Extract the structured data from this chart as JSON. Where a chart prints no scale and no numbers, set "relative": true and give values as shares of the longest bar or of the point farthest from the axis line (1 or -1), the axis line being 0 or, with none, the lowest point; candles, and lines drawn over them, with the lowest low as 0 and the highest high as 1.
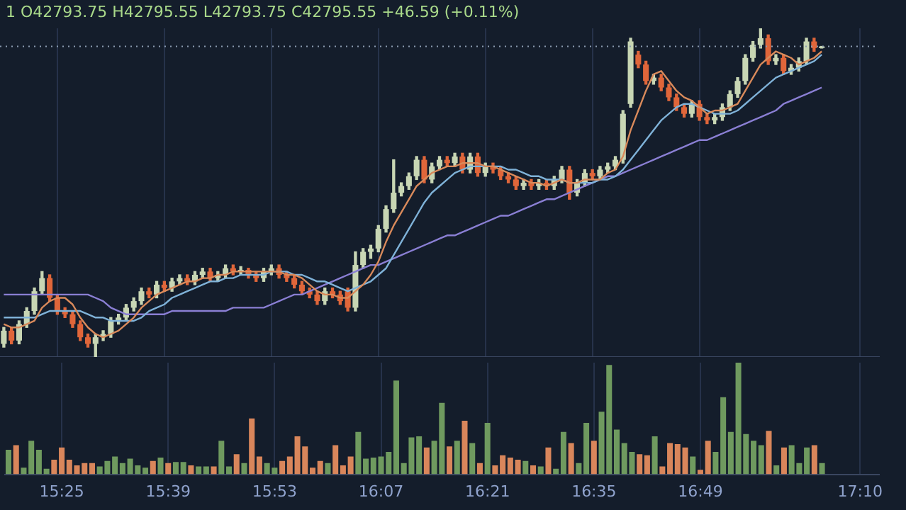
{
  "chart_data": [
    {
      "type": "candlestick",
      "relative": true,
      "tick_labels": false,
      "grid": "x",
      "legend": false,
      "annotations": [
        "1 O42793.75 H42795.55 L42793.75 C42795.55 +46.59 (+0.11%)"
      ],
      "categories": [
        null,
        null,
        null,
        null,
        null,
        null,
        null,
        null,
        null,
        null,
        null,
        null,
        null,
        null,
        null,
        null,
        null,
        null,
        null,
        null,
        null,
        null,
        null,
        null,
        null,
        null,
        null,
        null,
        null,
        null,
        null,
        null,
        null,
        null,
        null,
        null,
        null,
        null,
        null,
        null,
        null,
        null,
        null,
        null,
        null,
        null,
        null,
        null,
        null,
        null,
        null,
        null,
        null,
        null,
        null,
        null,
        null,
        null,
        null,
        null,
        null,
        null,
        null,
        null,
        null,
        null,
        null,
        null,
        null,
        null,
        null,
        null,
        null,
        null,
        null,
        null,
        null,
        null,
        null,
        null,
        null,
        null,
        null,
        null,
        null,
        null,
        null,
        null,
        null,
        null,
        null,
        null,
        null,
        null,
        null,
        null,
        null,
        null,
        null,
        null,
        null,
        null,
        null,
        null,
        null,
        null,
        null,
        null,
        null,
        null,
        null,
        null,
        null,
        null,
        null
      ],
      "ohlc": [
        [
          0.04,
          0.09,
          0.03,
          0.08
        ],
        [
          0.08,
          0.09,
          0.04,
          0.05
        ],
        [
          0.05,
          0.11,
          0.04,
          0.1
        ],
        [
          0.1,
          0.15,
          0.09,
          0.14
        ],
        [
          0.14,
          0.21,
          0.13,
          0.2
        ],
        [
          0.2,
          0.26,
          0.19,
          0.24
        ],
        [
          0.24,
          0.25,
          0.17,
          0.18
        ],
        [
          0.18,
          0.19,
          0.13,
          0.14
        ],
        [
          0.14,
          0.15,
          0.12,
          0.13
        ],
        [
          0.13,
          0.14,
          0.09,
          0.1
        ],
        [
          0.1,
          0.11,
          0.05,
          0.06
        ],
        [
          0.06,
          0.07,
          0.03,
          0.04
        ],
        [
          0.04,
          0.07,
          0,
          0.06
        ],
        [
          0.06,
          0.08,
          0.05,
          0.07
        ],
        [
          0.07,
          0.12,
          0.06,
          0.11
        ],
        [
          0.11,
          0.13,
          0.1,
          0.12
        ],
        [
          0.12,
          0.16,
          0.11,
          0.15
        ],
        [
          0.15,
          0.18,
          0.14,
          0.17
        ],
        [
          0.17,
          0.21,
          0.16,
          0.2
        ],
        [
          0.2,
          0.21,
          0.18,
          0.19
        ],
        [
          0.19,
          0.23,
          0.18,
          0.22
        ],
        [
          0.22,
          0.23,
          0.2,
          0.21
        ],
        [
          0.21,
          0.24,
          0.2,
          0.23
        ],
        [
          0.23,
          0.25,
          0.22,
          0.24
        ],
        [
          0.24,
          0.25,
          0.22,
          0.23
        ],
        [
          0.23,
          0.26,
          0.22,
          0.25
        ],
        [
          0.25,
          0.27,
          0.24,
          0.26
        ],
        [
          0.26,
          0.27,
          0.23,
          0.24
        ],
        [
          0.24,
          0.26,
          0.23,
          0.25
        ],
        [
          0.25,
          0.28,
          0.24,
          0.27
        ],
        [
          0.27,
          0.28,
          0.25,
          0.26
        ],
        [
          0.26,
          0.275,
          0.25,
          0.265
        ],
        [
          0.265,
          0.27,
          0.24,
          0.25
        ],
        [
          0.25,
          0.26,
          0.23,
          0.24
        ],
        [
          0.24,
          0.27,
          0.23,
          0.26
        ],
        [
          0.26,
          0.28,
          0.25,
          0.27
        ],
        [
          0.27,
          0.28,
          0.24,
          0.25
        ],
        [
          0.25,
          0.26,
          0.23,
          0.24
        ],
        [
          0.24,
          0.25,
          0.21,
          0.22
        ],
        [
          0.22,
          0.23,
          0.19,
          0.2
        ],
        [
          0.2,
          0.21,
          0.18,
          0.19
        ],
        [
          0.19,
          0.2,
          0.16,
          0.17
        ],
        [
          0.17,
          0.21,
          0.16,
          0.2
        ],
        [
          0.2,
          0.21,
          0.18,
          0.19
        ],
        [
          0.19,
          0.2,
          0.16,
          0.17
        ],
        [
          0.2,
          0.21,
          0.14,
          0.15
        ],
        [
          0.15,
          0.32,
          0.14,
          0.28
        ],
        [
          0.28,
          0.33,
          0.27,
          0.32
        ],
        [
          0.32,
          0.34,
          0.3,
          0.33
        ],
        [
          0.33,
          0.4,
          0.32,
          0.39
        ],
        [
          0.39,
          0.46,
          0.38,
          0.45
        ],
        [
          0.45,
          0.6,
          0.44,
          0.5
        ],
        [
          0.5,
          0.53,
          0.49,
          0.52
        ],
        [
          0.52,
          0.56,
          0.51,
          0.55
        ],
        [
          0.55,
          0.61,
          0.54,
          0.6
        ],
        [
          0.6,
          0.61,
          0.53,
          0.54
        ],
        [
          0.54,
          0.59,
          0.53,
          0.58
        ],
        [
          0.58,
          0.61,
          0.57,
          0.6
        ],
        [
          0.6,
          0.61,
          0.58,
          0.59
        ],
        [
          0.59,
          0.62,
          0.58,
          0.61
        ],
        [
          0.61,
          0.62,
          0.56,
          0.57
        ],
        [
          0.57,
          0.62,
          0.56,
          0.61
        ],
        [
          0.61,
          0.62,
          0.55,
          0.56
        ],
        [
          0.56,
          0.59,
          0.55,
          0.58
        ],
        [
          0.58,
          0.59,
          0.56,
          0.57
        ],
        [
          0.57,
          0.58,
          0.54,
          0.55
        ],
        [
          0.55,
          0.56,
          0.53,
          0.54
        ],
        [
          0.54,
          0.55,
          0.51,
          0.52
        ],
        [
          0.52,
          0.54,
          0.51,
          0.53
        ],
        [
          0.53,
          0.54,
          0.51,
          0.52
        ],
        [
          0.52,
          0.54,
          0.51,
          0.53
        ],
        [
          0.53,
          0.54,
          0.51,
          0.52
        ],
        [
          0.52,
          0.55,
          0.51,
          0.54
        ],
        [
          0.54,
          0.58,
          0.53,
          0.57
        ],
        [
          0.57,
          0.58,
          0.48,
          0.5
        ],
        [
          0.5,
          0.54,
          0.49,
          0.53
        ],
        [
          0.53,
          0.57,
          0.52,
          0.56
        ],
        [
          0.56,
          0.57,
          0.54,
          0.55
        ],
        [
          0.55,
          0.58,
          0.54,
          0.57
        ],
        [
          0.57,
          0.59,
          0.56,
          0.58
        ],
        [
          0.58,
          0.61,
          0.57,
          0.6
        ],
        [
          0.6,
          0.75,
          0.59,
          0.74
        ],
        [
          0.77,
          0.97,
          0.76,
          0.96
        ],
        [
          0.92,
          0.93,
          0.88,
          0.89
        ],
        [
          0.89,
          0.9,
          0.83,
          0.84
        ],
        [
          0.84,
          0.86,
          0.83,
          0.85
        ],
        [
          0.85,
          0.86,
          0.81,
          0.82
        ],
        [
          0.82,
          0.83,
          0.78,
          0.79
        ],
        [
          0.79,
          0.8,
          0.75,
          0.76
        ],
        [
          0.76,
          0.77,
          0.73,
          0.74
        ],
        [
          0.74,
          0.78,
          0.73,
          0.77
        ],
        [
          0.77,
          0.78,
          0.72,
          0.73
        ],
        [
          0.73,
          0.74,
          0.71,
          0.72
        ],
        [
          0.72,
          0.74,
          0.71,
          0.73
        ],
        [
          0.73,
          0.77,
          0.72,
          0.76
        ],
        [
          0.76,
          0.81,
          0.75,
          0.8
        ],
        [
          0.8,
          0.85,
          0.79,
          0.84
        ],
        [
          0.84,
          0.92,
          0.83,
          0.91
        ],
        [
          0.91,
          0.96,
          0.9,
          0.95
        ],
        [
          0.95,
          1,
          0.94,
          0.97
        ],
        [
          0.97,
          0.98,
          0.89,
          0.9
        ],
        [
          0.9,
          0.92,
          0.89,
          0.91
        ],
        [
          0.91,
          0.92,
          0.86,
          0.87
        ],
        [
          0.87,
          0.89,
          0.86,
          0.88
        ],
        [
          0.88,
          0.91,
          0.87,
          0.9
        ],
        [
          0.9,
          0.97,
          0.89,
          0.96
        ],
        [
          0.96,
          0.97,
          0.93,
          0.94
        ],
        [
          0.94,
          0.945,
          0.94,
          0.945
        ],
        null,
        null,
        null,
        null,
        null,
        null,
        null
      ],
      "colors": [
        "#c8d6b4",
        "#e0663a",
        "#c8d6b4",
        "#c8d6b4",
        "#c8d6b4",
        "#c8d6b4",
        "#e0663a",
        "#e0663a",
        "#e0663a",
        "#e0663a",
        "#e0663a",
        "#e0663a",
        "#c8d6b4",
        "#c8d6b4",
        "#c8d6b4",
        "#c8d6b4",
        "#c8d6b4",
        "#c8d6b4",
        "#c8d6b4",
        "#e0663a",
        "#c8d6b4",
        "#e0663a",
        "#c8d6b4",
        "#c8d6b4",
        "#e0663a",
        "#c8d6b4",
        "#c8d6b4",
        "#e0663a",
        "#c8d6b4",
        "#c8d6b4",
        "#e0663a",
        "#c8d6b4",
        "#e0663a",
        "#e0663a",
        "#c8d6b4",
        "#c8d6b4",
        "#e0663a",
        "#e0663a",
        "#e0663a",
        "#e0663a",
        "#e0663a",
        "#e0663a",
        "#c8d6b4",
        "#e0663a",
        "#e0663a",
        "#e0663a",
        "#c8d6b4",
        "#c8d6b4",
        "#c8d6b4",
        "#c8d6b4",
        "#c8d6b4",
        "#c8d6b4",
        "#c8d6b4",
        "#c8d6b4",
        "#c8d6b4",
        "#e0663a",
        "#c8d6b4",
        "#c8d6b4",
        "#e0663a",
        "#c8d6b4",
        "#e0663a",
        "#c8d6b4",
        "#e0663a",
        "#c8d6b4",
        "#e0663a",
        "#e0663a",
        "#e0663a",
        "#e0663a",
        "#c8d6b4",
        "#e0663a",
        "#c8d6b4",
        "#e0663a",
        "#c8d6b4",
        "#c8d6b4",
        "#e0663a",
        "#c8d6b4",
        "#c8d6b4",
        "#e0663a",
        "#c8d6b4",
        "#c8d6b4",
        "#c8d6b4",
        "#c8d6b4",
        "#c8d6b4",
        "#e0663a",
        "#e0663a",
        "#c8d6b4",
        "#e0663a",
        "#e0663a",
        "#e0663a",
        "#e0663a",
        "#c8d6b4",
        "#e0663a",
        "#e0663a",
        "#c8d6b4",
        "#c8d6b4",
        "#c8d6b4",
        "#c8d6b4",
        "#c8d6b4",
        "#c8d6b4",
        "#c8d6b4",
        "#e0663a",
        "#c8d6b4",
        "#e0663a",
        "#c8d6b4",
        "#c8d6b4",
        "#c8d6b4",
        "#e0663a",
        "#c8d6b4",
        "#c8d6b4",
        "#c8d6b4",
        "#c8d6b4",
        "#c8d6b4",
        "#c8d6b4",
        "#c8d6b4",
        "#c8d6b4"
      ],
      "series": [
        {
          "type": "line",
          "color": "#d98a5b",
          "values": [
            0.1,
            0.09,
            0.09,
            0.1,
            0.11,
            0.15,
            0.17,
            0.18,
            0.18,
            0.16,
            0.12,
            0.09,
            0.07,
            0.06,
            0.07,
            0.08,
            0.1,
            0.12,
            0.15,
            0.17,
            0.19,
            0.2,
            0.21,
            0.22,
            0.23,
            0.23,
            0.24,
            0.24,
            0.25,
            0.25,
            0.26,
            0.26,
            0.26,
            0.26,
            0.26,
            0.26,
            0.26,
            0.25,
            0.25,
            0.24,
            0.22,
            0.2,
            0.19,
            0.19,
            0.18,
            0.18,
            0.2,
            0.22,
            0.25,
            0.29,
            0.35,
            0.4,
            0.44,
            0.48,
            0.52,
            0.54,
            0.56,
            0.57,
            0.58,
            0.58,
            0.59,
            0.59,
            0.59,
            0.58,
            0.58,
            0.57,
            0.56,
            0.55,
            0.54,
            0.53,
            0.53,
            0.52,
            0.53,
            0.54,
            0.53,
            0.53,
            0.54,
            0.54,
            0.54,
            0.56,
            0.57,
            0.61,
            0.69,
            0.75,
            0.81,
            0.86,
            0.87,
            0.84,
            0.81,
            0.79,
            0.78,
            0.76,
            0.74,
            0.75,
            0.75,
            0.76,
            0.77,
            0.81,
            0.85,
            0.89,
            0.91,
            0.93,
            0.92,
            0.91,
            0.89,
            0.9,
            0.91,
            0.93,
            null,
            null,
            null,
            null,
            null,
            null,
            null
          ]
        },
        {
          "type": "line",
          "color": "#7fb2d8",
          "values": [
            0.12,
            0.12,
            0.12,
            0.12,
            0.12,
            0.13,
            0.14,
            0.14,
            0.14,
            0.14,
            0.14,
            0.13,
            0.12,
            0.12,
            0.11,
            0.11,
            0.11,
            0.11,
            0.12,
            0.14,
            0.15,
            0.16,
            0.18,
            0.19,
            0.2,
            0.21,
            0.22,
            0.23,
            0.23,
            0.24,
            0.24,
            0.25,
            0.25,
            0.25,
            0.25,
            0.26,
            0.26,
            0.26,
            0.25,
            0.25,
            0.24,
            0.23,
            0.23,
            0.22,
            0.21,
            0.2,
            0.21,
            0.22,
            0.23,
            0.25,
            0.27,
            0.31,
            0.35,
            0.39,
            0.43,
            0.47,
            0.5,
            0.52,
            0.54,
            0.56,
            0.57,
            0.58,
            0.58,
            0.58,
            0.58,
            0.58,
            0.57,
            0.57,
            0.56,
            0.55,
            0.55,
            0.54,
            0.54,
            0.54,
            0.53,
            0.53,
            0.53,
            0.53,
            0.54,
            0.54,
            0.55,
            0.57,
            0.6,
            0.63,
            0.66,
            0.69,
            0.72,
            0.74,
            0.76,
            0.77,
            0.77,
            0.76,
            0.75,
            0.74,
            0.74,
            0.74,
            0.75,
            0.77,
            0.79,
            0.81,
            0.83,
            0.85,
            0.86,
            0.87,
            0.88,
            0.89,
            0.9,
            0.92,
            null,
            null,
            null,
            null,
            null,
            null,
            null
          ]
        },
        {
          "type": "line",
          "color": "#8a7fd4",
          "values": [
            0.19,
            0.19,
            0.19,
            0.19,
            0.19,
            0.19,
            0.19,
            0.19,
            0.19,
            0.19,
            0.19,
            0.19,
            0.18,
            0.17,
            0.15,
            0.14,
            0.13,
            0.13,
            0.13,
            0.13,
            0.13,
            0.13,
            0.14,
            0.14,
            0.14,
            0.14,
            0.14,
            0.14,
            0.14,
            0.14,
            0.15,
            0.15,
            0.15,
            0.15,
            0.15,
            0.16,
            0.17,
            0.18,
            0.19,
            0.19,
            0.2,
            0.21,
            0.22,
            0.23,
            0.24,
            0.25,
            0.26,
            0.27,
            0.28,
            0.28,
            0.29,
            0.3,
            0.31,
            0.32,
            0.33,
            0.34,
            0.35,
            0.36,
            0.37,
            0.37,
            0.38,
            0.39,
            0.4,
            0.41,
            0.42,
            0.43,
            0.43,
            0.44,
            0.45,
            0.46,
            0.47,
            0.48,
            0.48,
            0.49,
            0.5,
            0.51,
            0.52,
            0.53,
            0.54,
            0.55,
            0.55,
            0.56,
            0.57,
            0.58,
            0.59,
            0.6,
            0.61,
            0.62,
            0.63,
            0.64,
            0.65,
            0.66,
            0.66,
            0.67,
            0.68,
            0.69,
            0.7,
            0.71,
            0.72,
            0.73,
            0.74,
            0.75,
            0.77,
            0.78,
            0.79,
            0.8,
            0.81,
            0.82,
            null,
            null,
            null,
            null,
            null,
            null,
            null
          ]
        }
      ],
      "ref_lines": [
        {
          "axis": "y",
          "value": 0.945,
          "color": "#8a9bb0",
          "line_style": "dotted"
        }
      ]
    },
    {
      "type": "bar",
      "relative": true,
      "grid": "x",
      "legend": false,
      "categories": [
        null,
        null,
        null,
        null,
        null,
        null,
        null,
        "15:25",
        null,
        null,
        null,
        null,
        null,
        null,
        null,
        null,
        null,
        null,
        null,
        null,
        null,
        "15:39",
        null,
        null,
        null,
        null,
        null,
        null,
        null,
        null,
        null,
        null,
        null,
        null,
        null,
        "15:53",
        null,
        null,
        null,
        null,
        null,
        null,
        null,
        null,
        null,
        null,
        null,
        null,
        null,
        "16:07",
        null,
        null,
        null,
        null,
        null,
        null,
        null,
        null,
        null,
        null,
        null,
        null,
        null,
        "16:21",
        null,
        null,
        null,
        null,
        null,
        null,
        null,
        null,
        null,
        null,
        null,
        null,
        null,
        "16:35",
        null,
        null,
        null,
        null,
        null,
        null,
        null,
        null,
        null,
        null,
        null,
        null,
        null,
        "16:49",
        null,
        null,
        null,
        null,
        null,
        null,
        null,
        null,
        null,
        null,
        null,
        null,
        null,
        null,
        null,
        null,
        null,
        null,
        null,
        null,
        "17:10",
        null,
        null
      ],
      "values": [
        0.22,
        0.26,
        0.06,
        0.3,
        0.22,
        0.05,
        0.13,
        0.24,
        0.13,
        0.08,
        0.1,
        0.1,
        0.07,
        0.12,
        0.16,
        0.1,
        0.14,
        0.08,
        0.06,
        0.12,
        0.15,
        0.1,
        0.11,
        0.11,
        0.08,
        0.07,
        0.07,
        0.07,
        0.3,
        0.07,
        0.18,
        0.1,
        0.5,
        0.16,
        0.1,
        0.06,
        0.12,
        0.16,
        0.34,
        0.25,
        0.06,
        0.12,
        0.1,
        0.26,
        0.08,
        0.16,
        0.38,
        0.14,
        0.15,
        0.16,
        0.2,
        0.84,
        0.1,
        0.33,
        0.34,
        0.24,
        0.3,
        0.64,
        0.25,
        0.3,
        0.48,
        0.28,
        0.1,
        0.46,
        0.08,
        0.17,
        0.15,
        0.13,
        0.12,
        0.08,
        0.07,
        0.24,
        0.05,
        0.38,
        0.28,
        0.1,
        0.46,
        0.3,
        0.56,
        0.98,
        0.4,
        0.28,
        0.2,
        0.18,
        0.17,
        0.34,
        0.07,
        0.28,
        0.27,
        0.24,
        0.16,
        0.04,
        0.3,
        0.2,
        0.69,
        0.38,
        1,
        0.36,
        0.3,
        0.26,
        0.39,
        0.08,
        0.24,
        0.26,
        0.1,
        0.24,
        0.26,
        0.1,
        null,
        null,
        null,
        null,
        null,
        null,
        null
      ],
      "colors": [
        "#6f9a5f",
        "#d9865b",
        "#6f9a5f",
        "#6f9a5f",
        "#6f9a5f",
        "#6f9a5f",
        "#d9865b",
        "#d9865b",
        "#d9865b",
        "#d9865b",
        "#d9865b",
        "#d9865b",
        "#6f9a5f",
        "#6f9a5f",
        "#6f9a5f",
        "#6f9a5f",
        "#6f9a5f",
        "#6f9a5f",
        "#6f9a5f",
        "#d9865b",
        "#6f9a5f",
        "#d9865b",
        "#6f9a5f",
        "#6f9a5f",
        "#d9865b",
        "#6f9a5f",
        "#6f9a5f",
        "#d9865b",
        "#6f9a5f",
        "#6f9a5f",
        "#d9865b",
        "#6f9a5f",
        "#d9865b",
        "#d9865b",
        "#6f9a5f",
        "#6f9a5f",
        "#d9865b",
        "#d9865b",
        "#d9865b",
        "#d9865b",
        "#d9865b",
        "#d9865b",
        "#6f9a5f",
        "#d9865b",
        "#d9865b",
        "#d9865b",
        "#6f9a5f",
        "#6f9a5f",
        "#6f9a5f",
        "#6f9a5f",
        "#6f9a5f",
        "#6f9a5f",
        "#6f9a5f",
        "#6f9a5f",
        "#6f9a5f",
        "#d9865b",
        "#6f9a5f",
        "#6f9a5f",
        "#d9865b",
        "#6f9a5f",
        "#d9865b",
        "#6f9a5f",
        "#d9865b",
        "#6f9a5f",
        "#d9865b",
        "#d9865b",
        "#d9865b",
        "#d9865b",
        "#6f9a5f",
        "#d9865b",
        "#6f9a5f",
        "#d9865b",
        "#6f9a5f",
        "#6f9a5f",
        "#d9865b",
        "#6f9a5f",
        "#6f9a5f",
        "#d9865b",
        "#6f9a5f",
        "#6f9a5f",
        "#6f9a5f",
        "#6f9a5f",
        "#6f9a5f",
        "#d9865b",
        "#d9865b",
        "#6f9a5f",
        "#d9865b",
        "#d9865b",
        "#d9865b",
        "#d9865b",
        "#6f9a5f",
        "#d9865b",
        "#d9865b",
        "#6f9a5f",
        "#6f9a5f",
        "#6f9a5f",
        "#6f9a5f",
        "#6f9a5f",
        "#6f9a5f",
        "#6f9a5f",
        "#d9865b",
        "#6f9a5f",
        "#d9865b",
        "#6f9a5f",
        "#6f9a5f",
        "#6f9a5f",
        "#d9865b",
        "#6f9a5f",
        "#6f9a5f",
        "#6f9a5f",
        "#6f9a5f",
        "#6f9a5f",
        "#6f9a5f",
        "#6f9a5f",
        "#6f9a5f"
      ]
    }
  ]
}
